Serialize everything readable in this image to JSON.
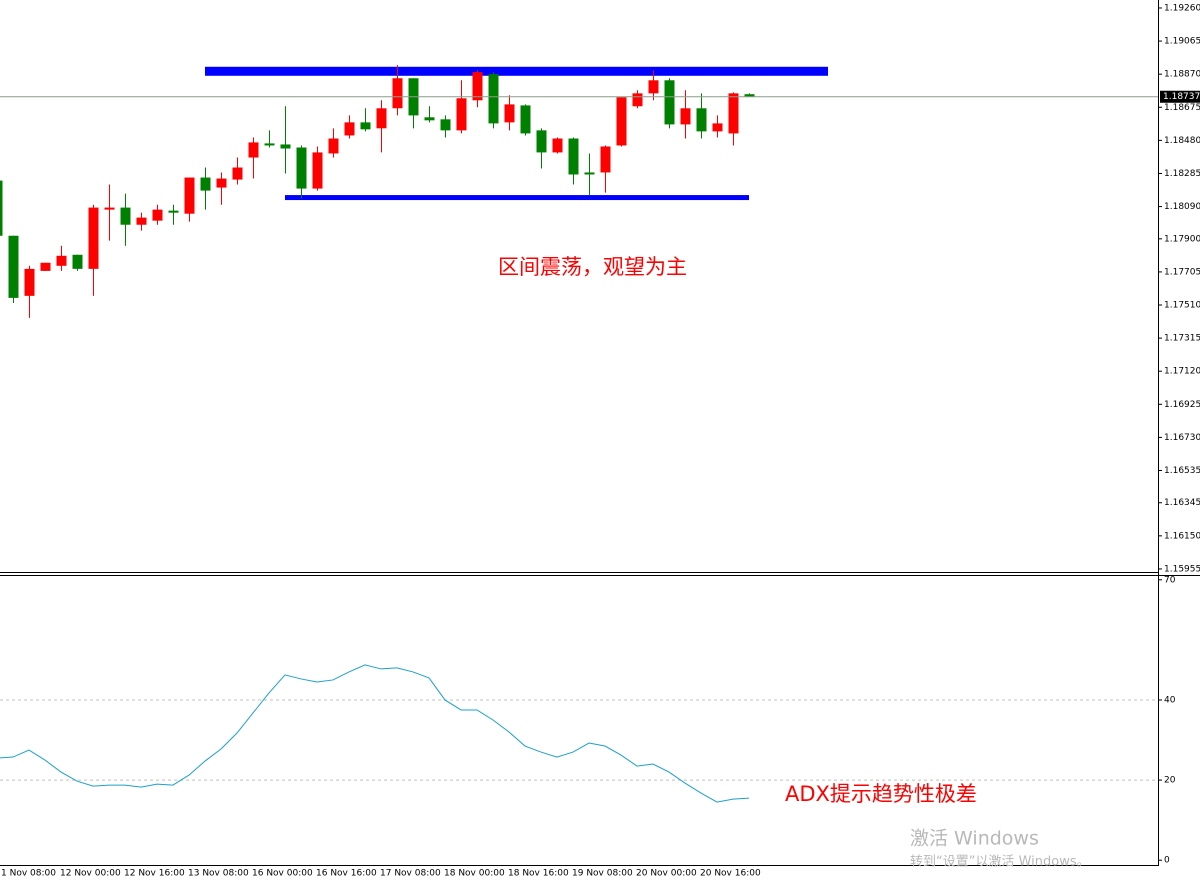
{
  "chart_data": [
    {
      "type": "candlestick",
      "categories": [
        "1 Nov 08:00",
        null,
        null,
        null,
        "12 Nov 00:00",
        null,
        null,
        null,
        "12 Nov 16:00",
        null,
        null,
        null,
        "13 Nov 08:00",
        null,
        null,
        null,
        "16 Nov 00:00",
        null,
        null,
        null,
        "16 Nov 16:00",
        null,
        null,
        null,
        "17 Nov 08:00",
        null,
        null,
        null,
        "18 Nov 00:00",
        null,
        null,
        null,
        "18 Nov 16:00",
        null,
        null,
        null,
        "19 Nov 08:00",
        null,
        null,
        null,
        "20 Nov 00:00",
        null,
        null,
        null,
        "20 Nov 16:00",
        null,
        null,
        null
      ],
      "open": [
        1.18243,
        1.17918,
        1.17564,
        1.17711,
        1.17741,
        1.17806,
        1.17723,
        1.18072,
        1.18084,
        1.17983,
        1.18007,
        1.18066,
        1.18048,
        1.18261,
        1.18202,
        1.18249,
        1.18379,
        1.18462,
        1.18456,
        1.18438,
        1.18196,
        1.18403,
        1.18509,
        1.18586,
        1.18551,
        1.18669,
        1.18846,
        1.18616,
        1.18604,
        1.18539,
        1.18716,
        1.1887,
        1.18586,
        1.18686,
        1.18539,
        1.18409,
        1.18491,
        1.18291,
        1.18291,
        1.1845,
        1.18681,
        1.18757,
        1.18834,
        1.18574,
        1.18669,
        1.18533,
        1.18521,
        1.18752
      ],
      "high": [
        1.18255,
        1.17918,
        1.17741,
        1.17741,
        1.17859,
        1.17806,
        1.18101,
        1.1822,
        1.18166,
        1.18054,
        1.18101,
        1.18101,
        1.18261,
        1.1832,
        1.18291,
        1.18379,
        1.18497,
        1.18539,
        1.18681,
        1.1845,
        1.18444,
        1.18551,
        1.18627,
        1.18669,
        1.18716,
        1.18923,
        1.18846,
        1.18681,
        1.18627,
        1.18834,
        1.18893,
        1.18882,
        1.18746,
        1.18692,
        1.18551,
        1.18497,
        1.18497,
        1.18403,
        1.1845,
        1.18734,
        1.18775,
        1.18893,
        1.18846,
        1.18775,
        1.18757,
        1.18627,
        1.18763,
        1.18757
      ],
      "low": [
        1.17918,
        1.17522,
        1.17434,
        1.17711,
        1.17711,
        1.17711,
        1.17564,
        1.17889,
        1.17859,
        1.17948,
        1.17983,
        1.17983,
        1.18001,
        1.18072,
        1.18101,
        1.1822,
        1.18255,
        1.18438,
        1.18285,
        1.18137,
        1.18184,
        1.18379,
        1.18491,
        1.18533,
        1.18409,
        1.18627,
        1.18551,
        1.18586,
        1.18497,
        1.18521,
        1.18675,
        1.18551,
        1.18539,
        1.18509,
        1.18314,
        1.18403,
        1.1822,
        1.18155,
        1.18172,
        1.18444,
        1.18669,
        1.18716,
        1.18551,
        1.18491,
        1.18491,
        1.18497,
        1.1845,
        1.18737
      ],
      "close": [
        1.17918,
        1.17552,
        1.17723,
        1.17759,
        1.178,
        1.17723,
        1.18084,
        1.18084,
        1.17983,
        1.18025,
        1.18072,
        1.18054,
        1.18261,
        1.18184,
        1.18255,
        1.1832,
        1.18468,
        1.1845,
        1.18432,
        1.18196,
        1.18409,
        1.18491,
        1.18586,
        1.18545,
        1.18669,
        1.18846,
        1.18627,
        1.18598,
        1.18539,
        1.18728,
        1.18882,
        1.1858,
        1.18692,
        1.18521,
        1.18409,
        1.18491,
        1.18279,
        1.18279,
        1.18444,
        1.18734,
        1.18757,
        1.18834,
        1.18574,
        1.18669,
        1.18533,
        1.1858,
        1.18757,
        1.18737
      ],
      "up_color": "#ff0000",
      "down_color": "#008000",
      "ylim": [
        1.15937,
        1.19307
      ],
      "yticks": [
        {
          "value": 1.1926,
          "label": "1.19260"
        },
        1.19065,
        {
          "value": 1.1887,
          "label": "1.18870"
        },
        1.18675,
        {
          "value": 1.1848,
          "label": "1.18480"
        },
        1.18285,
        {
          "value": 1.1809,
          "label": "1.18090"
        },
        {
          "value": 1.179,
          "label": "1.17900"
        },
        1.17705,
        {
          "value": 1.1751,
          "label": "1.17510"
        },
        1.17315,
        {
          "value": 1.1712,
          "label": "1.17120"
        },
        1.16925,
        {
          "value": 1.1673,
          "label": "1.16730"
        },
        1.16535,
        1.16345,
        {
          "value": 1.1615,
          "label": "1.16150"
        },
        1.15955
      ],
      "levels": [
        {
          "value": 1.18887,
          "color": "#0000ff"
        },
        {
          "value": 1.18143,
          "color": "#0000ff"
        }
      ],
      "current_price": 1.18737,
      "annotation": "区间震荡，观望为主"
    },
    {
      "type": "line",
      "values": [
        25.5,
        25.75,
        27.5,
        25,
        22,
        19.75,
        18.5,
        18.75,
        18.75,
        18.25,
        19,
        18.75,
        21.25,
        24.75,
        27.75,
        31.75,
        36.75,
        41.75,
        46.25,
        45.25,
        44.5,
        45,
        47,
        48.75,
        47.75,
        48,
        47,
        45.5,
        40,
        37.5,
        37.5,
        35,
        32,
        28.5,
        27,
        25.75,
        27,
        29.25,
        28.5,
        26.25,
        23.5,
        24,
        22,
        19.25,
        16.75,
        14.5,
        15.25,
        15.5
      ],
      "color": "#1ca0c8",
      "ylim": [
        -1.2,
        71.2
      ],
      "yticks": [
        0,
        20,
        40,
        70
      ],
      "levels": [
        20,
        40
      ],
      "annotation": "ADX提示趋势性极差"
    }
  ],
  "watermark": {
    "title": "激活 Windows",
    "subtitle": "转到“设置”以激活 Windows。"
  }
}
